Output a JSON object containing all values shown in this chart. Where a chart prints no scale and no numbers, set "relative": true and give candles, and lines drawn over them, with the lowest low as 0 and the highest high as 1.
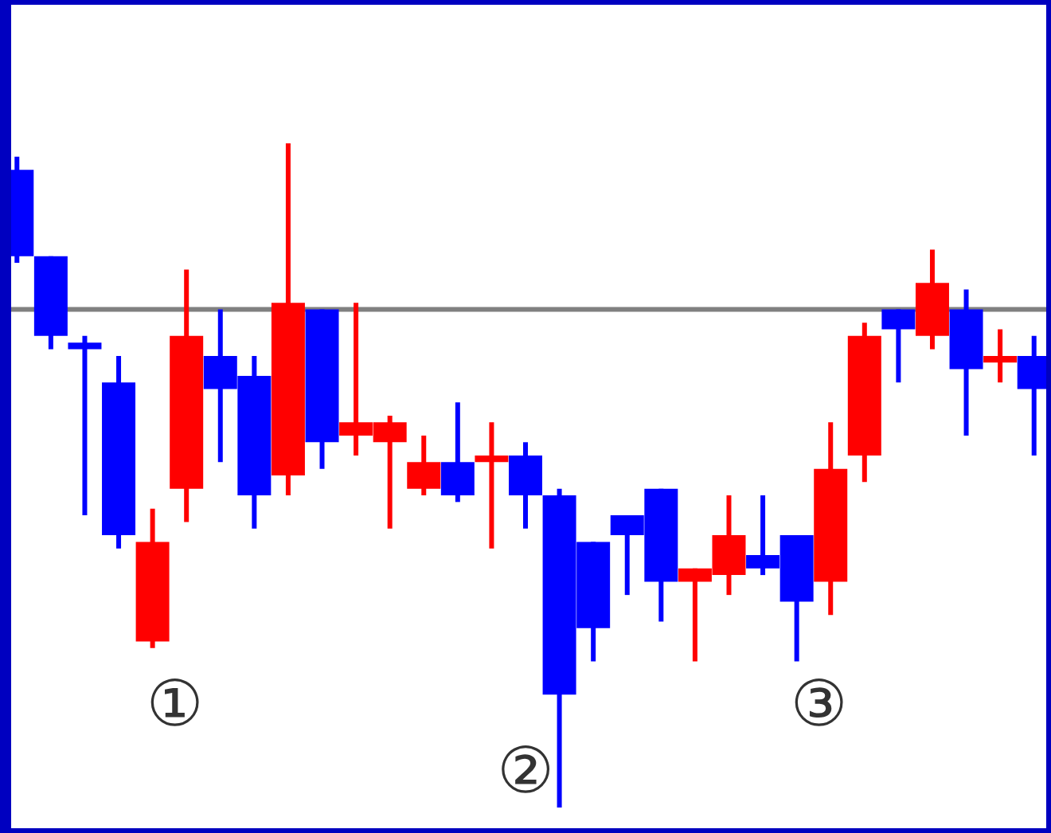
{
  "chart_data": {
    "type": "candlestick",
    "relative": true,
    "categories": [
      null,
      null,
      null,
      null,
      null,
      null,
      null,
      null,
      null,
      null,
      null,
      null,
      null,
      null,
      null,
      null,
      null,
      null,
      null,
      null,
      null,
      null,
      null,
      null,
      null,
      null,
      null,
      null,
      null,
      null,
      null
    ],
    "ohlc": [
      [
        0.96,
        0.98,
        0.82,
        0.83
      ],
      [
        0.83,
        0.83,
        0.69,
        0.71
      ],
      [
        0.7,
        0.71,
        0.44,
        0.69
      ],
      [
        0.64,
        0.68,
        0.39,
        0.41
      ],
      [
        0.25,
        0.45,
        0.24,
        0.4
      ],
      [
        0.48,
        0.81,
        0.43,
        0.71
      ],
      [
        0.68,
        0.75,
        0.52,
        0.63
      ],
      [
        0.65,
        0.68,
        0.42,
        0.47
      ],
      [
        0.5,
        1,
        0.47,
        0.76
      ],
      [
        0.75,
        0.75,
        0.51,
        0.55
      ],
      [
        0.56,
        0.76,
        0.53,
        0.58
      ],
      [
        0.55,
        0.59,
        0.42,
        0.58
      ],
      [
        0.48,
        0.56,
        0.47,
        0.52
      ],
      [
        0.52,
        0.61,
        0.46,
        0.47
      ],
      [
        0.52,
        0.58,
        0.39,
        0.53
      ],
      [
        0.53,
        0.55,
        0.42,
        0.47
      ],
      [
        0.47,
        0.48,
        0,
        0.17
      ],
      [
        0.4,
        0.4,
        0.22,
        0.27
      ],
      [
        0.44,
        0.44,
        0.32,
        0.41
      ],
      [
        0.48,
        0.48,
        0.28,
        0.34
      ],
      [
        0.34,
        0.36,
        0.22,
        0.36
      ],
      [
        0.35,
        0.47,
        0.32,
        0.41
      ],
      [
        0.38,
        0.47,
        0.35,
        0.36
      ],
      [
        0.41,
        0.41,
        0.22,
        0.31
      ],
      [
        0.34,
        0.58,
        0.29,
        0.51
      ],
      [
        0.53,
        0.73,
        0.49,
        0.71
      ],
      [
        0.75,
        0.75,
        0.64,
        0.72
      ],
      [
        0.71,
        0.84,
        0.69,
        0.79
      ],
      [
        0.75,
        0.78,
        0.56,
        0.66
      ],
      [
        0.67,
        0.72,
        0.64,
        0.68
      ],
      [
        0.68,
        0.71,
        0.53,
        0.63
      ]
    ],
    "colors": [
      "#0000ff",
      "#0000ff",
      "#0000ff",
      "#0000ff",
      "#ff0000",
      "#ff0000",
      "#0000ff",
      "#0000ff",
      "#ff0000",
      "#0000ff",
      "#ff0000",
      "#ff0000",
      "#ff0000",
      "#0000ff",
      "#ff0000",
      "#0000ff",
      "#0000ff",
      "#0000ff",
      "#0000ff",
      "#0000ff",
      "#ff0000",
      "#ff0000",
      "#0000ff",
      "#0000ff",
      "#ff0000",
      "#ff0000",
      "#0000ff",
      "#ff0000",
      "#0000ff",
      "#ff0000",
      "#0000ff"
    ],
    "ref_lines": [
      {
        "axis": "y",
        "value": 0.75,
        "color": "#808080"
      }
    ],
    "annotations": [
      "①",
      "②",
      "③"
    ],
    "legend": false
  }
}
